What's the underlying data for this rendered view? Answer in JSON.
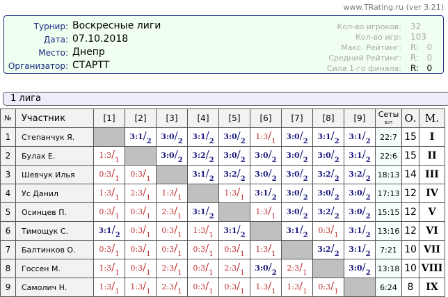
{
  "version": "www.TRating.ru (ver 3.21)",
  "info": {
    "tournament_label": "Турнир:",
    "tournament": "Воскресные лиги",
    "date_label": "Дата:",
    "date": "07.10.2018",
    "place_label": "Место:",
    "place": "Днепр",
    "org_label": "Организатор:",
    "org": "СТАРТТ",
    "players_label": "Кол-во игроков:",
    "players": "32",
    "games_label": "Кол-во игр:",
    "games": "103",
    "max_label": "Макс. Рейтинг:",
    "max": "R:   0",
    "avg_label": "Средний Рейтинг:",
    "avg": "R:   0",
    "strength_label": "Сила 1-го финала:",
    "strength": "R:   0"
  },
  "league": "1 лига",
  "headers": {
    "num": "№",
    "name": "Участник",
    "cols": [
      "[1]",
      "[2]",
      "[3]",
      "[4]",
      "[5]",
      "[6]",
      "[7]",
      "[8]",
      "[9]"
    ],
    "sets": "Сеты",
    "sets_sub": "в:п",
    "points": "О.",
    "place": "М."
  },
  "colors": {
    "win": "#1a1a80",
    "loss": "#c03030",
    "self": "#c0c0c0"
  },
  "rows": [
    {
      "n": "1",
      "name": "Степанчук Я.",
      "cells": [
        null,
        "3:1/2",
        "3:0/2",
        "3:1/2",
        "3:0/2",
        "1:3/1",
        "3:0/2",
        "3:1/2",
        "3:1/2"
      ],
      "sets": "22:7",
      "pts": "15",
      "place": "I"
    },
    {
      "n": "2",
      "name": "Булах Е.",
      "cells": [
        "1:3/1",
        null,
        "3:0/2",
        "3:2/2",
        "3:0/2",
        "3:0/2",
        "3:0/2",
        "3:0/2",
        "3:1/2"
      ],
      "sets": "22:6",
      "pts": "15",
      "place": "II"
    },
    {
      "n": "3",
      "name": "Шевчук Илья",
      "cells": [
        "0:3/1",
        "0:3/1",
        null,
        "3:1/2",
        "3:2/2",
        "3:0/2",
        "3:0/2",
        "3:2/2",
        "3:2/2"
      ],
      "sets": "18:13",
      "pts": "14",
      "place": "III"
    },
    {
      "n": "4",
      "name": "Ус Данил",
      "cells": [
        "1:3/1",
        "2:3/1",
        "1:3/1",
        null,
        "1:3/1",
        "3:1/2",
        "3:0/2",
        "3:0/2",
        "3:0/2"
      ],
      "sets": "17:13",
      "pts": "12",
      "place": "IV"
    },
    {
      "n": "5",
      "name": "Осинцев П.",
      "cells": [
        "0:3/1",
        "0:3/1",
        "2:3/1",
        "3:1/2",
        null,
        "1:3/1",
        "3:0/2",
        "3:2/2",
        "3:0/2"
      ],
      "sets": "15:15",
      "pts": "12",
      "place": "V"
    },
    {
      "n": "6",
      "name": "Тимощук С.",
      "cells": [
        "3:1/2",
        "0:3/1",
        "0:3/1",
        "1:3/1",
        "3:1/2",
        null,
        "3:1/2",
        "0:3/1",
        "3:1/2"
      ],
      "sets": "13:16",
      "pts": "12",
      "place": "VI"
    },
    {
      "n": "7",
      "name": "Балтинков О.",
      "cells": [
        "0:3/1",
        "0:3/1",
        "0:3/1",
        "0:3/1",
        "0:3/1",
        "1:3/1",
        null,
        "3:2/2",
        "3:1/2"
      ],
      "sets": "7:21",
      "pts": "10",
      "place": "VII"
    },
    {
      "n": "8",
      "name": "Госсен М.",
      "cells": [
        "1:3/1",
        "0:3/1",
        "2:3/1",
        "0:3/1",
        "2:3/1",
        "3:0/2",
        "2:3/1",
        null,
        "3:0/2"
      ],
      "sets": "13:18",
      "pts": "10",
      "place": "VIII"
    },
    {
      "n": "9",
      "name": "Самолич Н.",
      "cells": [
        "1:3/1",
        "1:3/1",
        "2:3/1",
        "0:3/1",
        "0:3/1",
        "1:3/1",
        "1:3/1",
        "0:3/1",
        null
      ],
      "sets": "6:24",
      "pts": "8",
      "place": "IX"
    }
  ]
}
